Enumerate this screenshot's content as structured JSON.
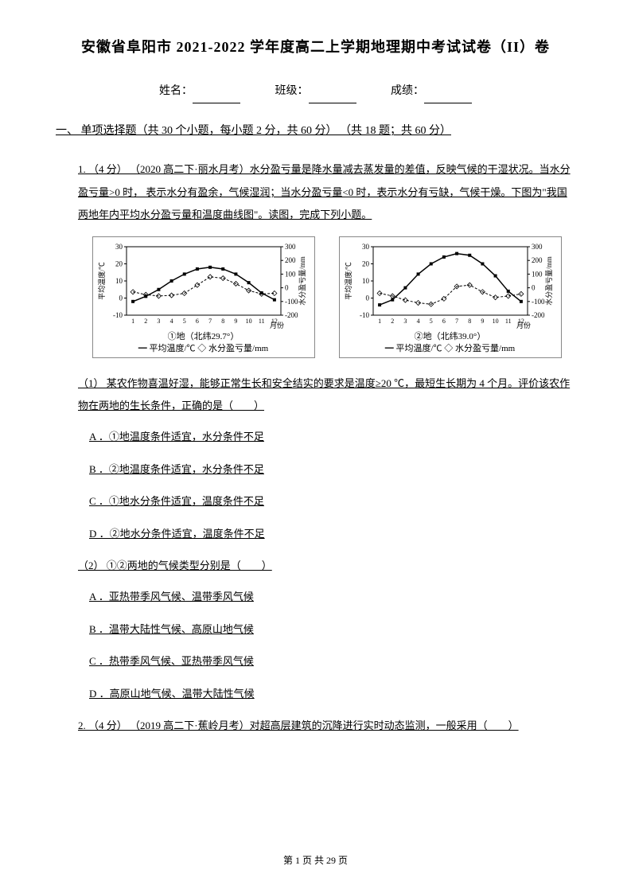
{
  "title": "安徽省阜阳市 2021-2022 学年度高二上学期地理期中考试试卷（II）卷",
  "header": {
    "name_label": "姓名：",
    "class_label": "班级：",
    "score_label": "成绩："
  },
  "section": {
    "heading": "一、 单项选择题（共 30 个小题，每小题 2 分，共 60 分） （共 18 题；共 60 分）"
  },
  "q1": {
    "stem": "1. （4 分） （2020 高二下·丽水月考）水分盈亏量是降水量减去蒸发量的差值，反映气候的干湿状况。当水分盈亏量>0 时， 表示水分有盈余，气候湿润；当水分盈亏量<0 时，表示水分有亏缺，气候干燥。下图为\"我国两地年内平均水分盈亏量和温度曲线图\"。读图，完成下列小题。",
    "chart1": {
      "type": "line-dual-axis",
      "caption": "①地（北纬29.7°）",
      "legend": "━ 平均温度/℃    ◇ 水分盈亏量/mm",
      "left_label": "平均温度/℃",
      "right_label": "水分盈亏量/mm",
      "x_label": "月份",
      "x_ticks": [
        1,
        2,
        3,
        4,
        5,
        6,
        7,
        8,
        9,
        10,
        11,
        12
      ],
      "left_ylim": [
        -10,
        30
      ],
      "left_yticks": [
        -10,
        0,
        10,
        20,
        30
      ],
      "right_ylim": [
        -200,
        300
      ],
      "right_yticks": [
        -200,
        -100,
        0,
        100,
        200,
        300
      ],
      "temp_values": [
        -2,
        1,
        5,
        10,
        14,
        17,
        18,
        17,
        14,
        9,
        3,
        -1
      ],
      "water_values": [
        -30,
        -50,
        -60,
        -55,
        -40,
        20,
        80,
        70,
        30,
        -20,
        -45,
        -40
      ],
      "temp_color": "#000000",
      "water_color": "#000000",
      "bg": "#ffffff",
      "grid_color": "#bbbbbb",
      "line_width": 1.5,
      "marker_size": 3
    },
    "chart2": {
      "type": "line-dual-axis",
      "caption": "②地（北纬39.0°）",
      "legend": "━ 平均温度/℃    ◇ 水分盈亏量/mm",
      "left_label": "平均温度/℃",
      "right_label": "水分盈亏量/mm",
      "x_label": "月份",
      "x_ticks": [
        1,
        2,
        3,
        4,
        5,
        6,
        7,
        8,
        9,
        10,
        11,
        12
      ],
      "left_ylim": [
        -10,
        30
      ],
      "left_yticks": [
        -10,
        0,
        10,
        20,
        30
      ],
      "right_ylim": [
        -200,
        300
      ],
      "right_yticks": [
        -200,
        -100,
        0,
        100,
        200,
        300
      ],
      "temp_values": [
        -4,
        -1,
        6,
        14,
        20,
        24,
        26,
        25,
        20,
        13,
        4,
        -2
      ],
      "water_values": [
        -40,
        -60,
        -90,
        -110,
        -120,
        -80,
        10,
        20,
        -30,
        -70,
        -60,
        -45
      ],
      "temp_color": "#000000",
      "water_color": "#000000",
      "bg": "#ffffff",
      "grid_color": "#bbbbbb",
      "line_width": 1.5,
      "marker_size": 3
    },
    "sub1": {
      "stem": "（1） 某农作物喜温好湿，能够正常生长和安全结实的要求是温度≥20 ℃，最短生长期为 4 个月。评价该农作物在两地的生长条件，正确的是（　　）",
      "A": "A ．①地温度条件适宜，水分条件不足",
      "B": "B ．②地温度条件适宜，水分条件不足",
      "C": "C ．①地水分条件适宜，温度条件不足",
      "D": "D ．②地水分条件适宜，温度条件不足"
    },
    "sub2": {
      "stem": "（2） ①②两地的气候类型分别是（　　）",
      "A": "A ．亚热带季风气候、温带季风气候",
      "B": "B ．温带大陆性气候、高原山地气候",
      "C": "C ．热带季风气候、亚热带季风气候",
      "D": "D ．高原山地气候、温带大陆性气候"
    }
  },
  "q2": {
    "stem": "2. （4 分） （2019 高二下·蕉岭月考）对超高层建筑的沉降进行实时动态监测，一般采用（　　）"
  },
  "footer": {
    "page_text": "第 1 页 共 29 页"
  }
}
